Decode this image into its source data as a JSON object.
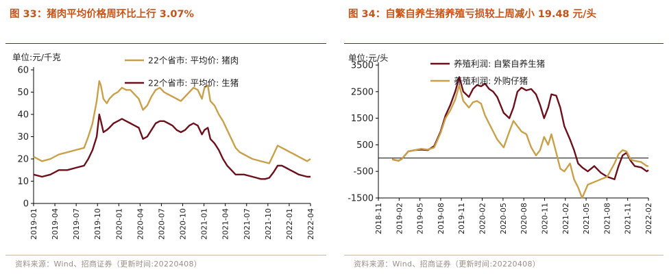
{
  "left": {
    "title": "图 33：猪肉平均价格周环比上行 3.07%",
    "source": "资料来源：Wind、招商证券（更新时间:20220408）"
  },
  "right": {
    "title": "图 34：自繁自养生猪养殖亏损较上周减小 19.48 元/头",
    "source": "资料来源：Wind、招商证券（更新时间:20220408）"
  },
  "colors": {
    "accent": "#c4541a",
    "rule": "#8b1a1a",
    "tan": "#c9a04a",
    "maroon": "#6b0f1a"
  },
  "chart_data": [
    {
      "id": "chart33",
      "type": "line",
      "title": "图 33：猪肉平均价格周环比上行 3.07%",
      "ylabel": "单位:元/千克",
      "ylim": [
        0,
        60
      ],
      "yticks": [
        0,
        10,
        20,
        30,
        40,
        50,
        60
      ],
      "xlabel": "",
      "xlim": [
        2019.0,
        2022.29
      ],
      "x_tick_labels": [
        "2019-01",
        "2019-04",
        "2019-07",
        "2019-10",
        "2020-01",
        "2020-04",
        "2020-07",
        "2020-10",
        "2021-01",
        "2021-04",
        "2021-07",
        "2021-10",
        "2022-01",
        "2022-04"
      ],
      "series": [
        {
          "name": "22个省市: 平均价: 猪肉",
          "color": "tan",
          "x": [
            2019.0,
            2019.1,
            2019.2,
            2019.3,
            2019.4,
            2019.5,
            2019.6,
            2019.65,
            2019.7,
            2019.75,
            2019.78,
            2019.8,
            2019.83,
            2019.87,
            2019.9,
            2019.95,
            2020.0,
            2020.05,
            2020.1,
            2020.15,
            2020.2,
            2020.25,
            2020.3,
            2020.35,
            2020.4,
            2020.45,
            2020.5,
            2020.55,
            2020.6,
            2020.65,
            2020.7,
            2020.75,
            2020.8,
            2020.85,
            2020.9,
            2020.95,
            2021.0,
            2021.03,
            2021.07,
            2021.1,
            2021.15,
            2021.2,
            2021.25,
            2021.3,
            2021.35,
            2021.4,
            2021.45,
            2021.5,
            2021.55,
            2021.6,
            2021.65,
            2021.7,
            2021.75,
            2021.8,
            2021.85,
            2021.9,
            2021.95,
            2022.0,
            2022.05,
            2022.1,
            2022.15,
            2022.2,
            2022.25,
            2022.29
          ],
          "values": [
            21,
            19,
            20,
            22,
            23,
            24,
            25,
            30,
            36,
            46,
            55,
            53,
            47,
            45,
            47,
            49,
            50,
            52,
            51,
            51,
            49,
            47,
            42,
            44,
            48,
            51,
            52,
            50,
            49,
            48,
            47,
            46,
            48,
            50,
            52,
            51,
            47,
            52,
            53,
            46,
            44,
            40,
            37,
            33,
            29,
            25,
            23,
            22,
            21,
            20,
            19.5,
            19,
            18.5,
            18,
            22,
            26,
            25,
            24,
            23,
            22,
            21,
            20,
            19,
            20
          ]
        },
        {
          "name": "22个省市: 平均价: 生猪",
          "color": "maroon",
          "x": [
            2019.0,
            2019.1,
            2019.2,
            2019.3,
            2019.4,
            2019.5,
            2019.6,
            2019.65,
            2019.7,
            2019.75,
            2019.78,
            2019.8,
            2019.83,
            2019.87,
            2019.9,
            2019.95,
            2020.0,
            2020.05,
            2020.1,
            2020.15,
            2020.2,
            2020.25,
            2020.3,
            2020.35,
            2020.4,
            2020.45,
            2020.5,
            2020.55,
            2020.6,
            2020.65,
            2020.7,
            2020.75,
            2020.8,
            2020.85,
            2020.9,
            2020.95,
            2021.0,
            2021.03,
            2021.07,
            2021.1,
            2021.15,
            2021.2,
            2021.25,
            2021.3,
            2021.35,
            2021.4,
            2021.45,
            2021.5,
            2021.55,
            2021.6,
            2021.65,
            2021.7,
            2021.75,
            2021.8,
            2021.85,
            2021.9,
            2021.95,
            2022.0,
            2022.05,
            2022.1,
            2022.15,
            2022.2,
            2022.25,
            2022.29
          ],
          "values": [
            13,
            12,
            13,
            15,
            15,
            16,
            17,
            20,
            24,
            30,
            40,
            37,
            32,
            33,
            34,
            36,
            37,
            38,
            37,
            36,
            35,
            34,
            29,
            30,
            33,
            36,
            37,
            37,
            36,
            35,
            33,
            32,
            33,
            35,
            36,
            35,
            31,
            33,
            34,
            29,
            27,
            24,
            20,
            17,
            15,
            13,
            13,
            13,
            12.5,
            12,
            11.5,
            11,
            11,
            11.5,
            14,
            17,
            17,
            16,
            15,
            14,
            13,
            12.5,
            12,
            12
          ]
        }
      ]
    },
    {
      "id": "chart34",
      "type": "line",
      "title": "图 34：自繁自养生猪养殖亏损较上周减小 19.48 元/头",
      "ylabel": "单位:元/头",
      "ylim": [
        -1500,
        3500
      ],
      "yticks": [
        -1500,
        -500,
        500,
        1500,
        2500,
        3500
      ],
      "zero_line": true,
      "xlabel": "",
      "xlim": [
        2018.83,
        2022.17
      ],
      "x_tick_labels": [
        "2018-11",
        "2019-02",
        "2019-05",
        "2019-08",
        "2019-11",
        "2020-02",
        "2020-05",
        "2020-08",
        "2020-11",
        "2021-02",
        "2021-05",
        "2021-08",
        "2021-11",
        "2022-02"
      ],
      "series": [
        {
          "name": "养殖利润: 自繁自养生猪",
          "color": "maroon",
          "x": [
            2019.0,
            2019.08,
            2019.12,
            2019.2,
            2019.28,
            2019.36,
            2019.44,
            2019.52,
            2019.6,
            2019.66,
            2019.72,
            2019.78,
            2019.83,
            2019.88,
            2019.95,
            2020.0,
            2020.05,
            2020.1,
            2020.15,
            2020.2,
            2020.25,
            2020.3,
            2020.38,
            2020.45,
            2020.5,
            2020.55,
            2020.6,
            2020.66,
            2020.72,
            2020.78,
            2020.83,
            2020.88,
            2020.93,
            2020.97,
            2021.03,
            2021.08,
            2021.13,
            2021.2,
            2021.25,
            2021.3,
            2021.35,
            2021.42,
            2021.5,
            2021.58,
            2021.66,
            2021.75,
            2021.8,
            2021.85,
            2021.9,
            2021.95,
            2022.0,
            2022.08,
            2022.15,
            2022.17
          ],
          "values": [
            -50,
            -100,
            -30,
            250,
            300,
            320,
            300,
            450,
            1000,
            1600,
            2000,
            2500,
            3050,
            2500,
            2300,
            2600,
            2750,
            2700,
            2800,
            2600,
            2500,
            2300,
            1700,
            1500,
            1900,
            2500,
            2650,
            2550,
            2600,
            2400,
            2000,
            1500,
            1900,
            2400,
            2350,
            1900,
            1200,
            700,
            300,
            -200,
            -350,
            -500,
            -300,
            -550,
            -700,
            -800,
            -300,
            100,
            200,
            -100,
            -300,
            -350,
            -500,
            -450
          ]
        },
        {
          "name": "养殖利润: 外购仔猪",
          "color": "tan",
          "x": [
            2019.0,
            2019.08,
            2019.12,
            2019.2,
            2019.28,
            2019.36,
            2019.44,
            2019.52,
            2019.6,
            2019.66,
            2019.72,
            2019.78,
            2019.83,
            2019.88,
            2019.95,
            2020.0,
            2020.05,
            2020.1,
            2020.15,
            2020.2,
            2020.25,
            2020.3,
            2020.38,
            2020.45,
            2020.5,
            2020.55,
            2020.6,
            2020.66,
            2020.72,
            2020.78,
            2020.83,
            2020.88,
            2020.93,
            2020.97,
            2021.03,
            2021.08,
            2021.13,
            2021.2,
            2021.25,
            2021.3,
            2021.35,
            2021.42,
            2021.5,
            2021.58,
            2021.66,
            2021.75,
            2021.8,
            2021.85,
            2021.9,
            2021.95,
            2022.0,
            2022.08,
            2022.15,
            2022.17
          ],
          "values": [
            -50,
            -100,
            -30,
            250,
            300,
            350,
            320,
            400,
            950,
            1500,
            1800,
            2200,
            2750,
            2150,
            1900,
            2100,
            2150,
            2050,
            1600,
            1300,
            1000,
            700,
            400,
            1000,
            1400,
            1200,
            1000,
            900,
            400,
            100,
            300,
            800,
            500,
            900,
            200,
            -400,
            -500,
            -200,
            -800,
            -1100,
            -1500,
            -1000,
            -900,
            -800,
            -700,
            -200,
            150,
            300,
            250,
            -50,
            -100,
            -150,
            -300,
            -300
          ]
        }
      ]
    }
  ]
}
